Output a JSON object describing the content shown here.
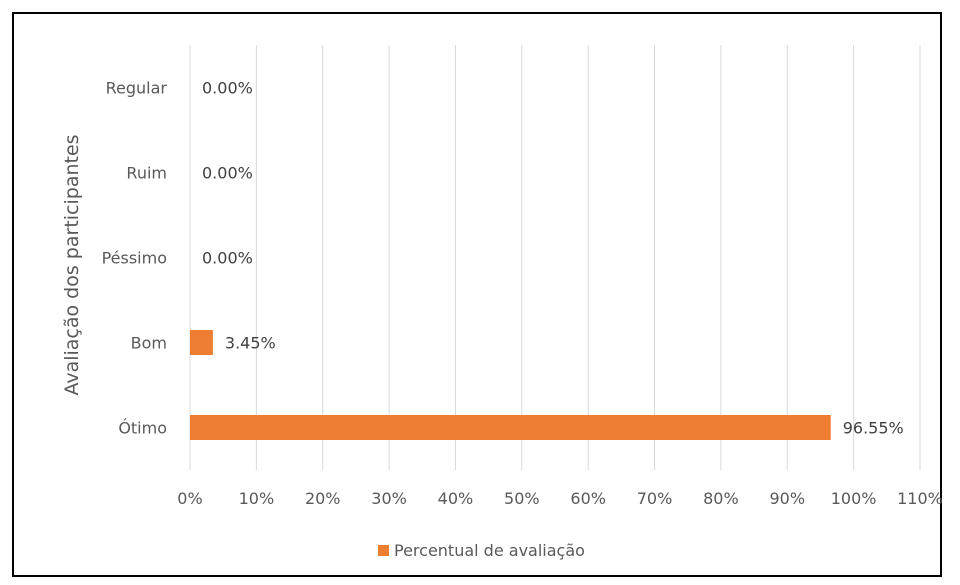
{
  "chart_data": {
    "type": "bar",
    "orientation": "horizontal",
    "categories": [
      "Regular",
      "Ruim",
      "Péssimo",
      "Bom",
      "Ótimo"
    ],
    "series": [
      {
        "name": "Percentual de avaliação",
        "values": [
          0.0,
          0.0,
          0.0,
          3.45,
          96.55
        ],
        "data_labels": [
          "0.00%",
          "0.00%",
          "0.00%",
          "3.45%",
          "96.55%"
        ]
      }
    ],
    "title": "",
    "xlabel": "",
    "ylabel": "Avaliação dos participantes",
    "xlim": [
      0,
      110
    ],
    "x_ticks": [
      0,
      10,
      20,
      30,
      40,
      50,
      60,
      70,
      80,
      90,
      100,
      110
    ],
    "x_tick_labels": [
      "0%",
      "10%",
      "20%",
      "30%",
      "40%",
      "50%",
      "60%",
      "70%",
      "80%",
      "90%",
      "100%",
      "110%"
    ],
    "grid": true,
    "legend_position": "bottom",
    "colors": {
      "bar": "#ED7D31",
      "grid": "#D9D9D9",
      "text": "#595959"
    }
  }
}
